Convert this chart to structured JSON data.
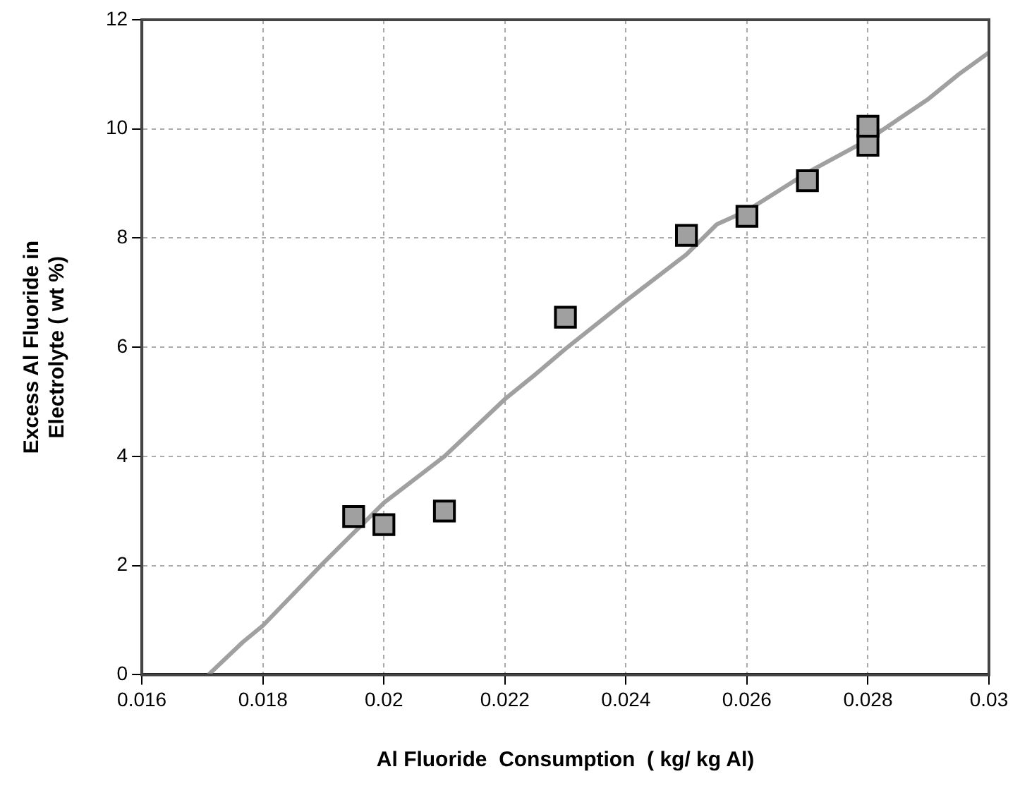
{
  "chart_data": {
    "type": "scatter",
    "xlabel": "Al Fluoride  Consumption  ( kg/ kg Al)",
    "ylabel": "Excess Al Fluoride in Electrolyte ( wt %)",
    "xlim": [
      0.016,
      0.03
    ],
    "xticks": [
      0.016,
      0.018,
      0.02,
      0.022,
      0.024,
      0.026,
      0.028,
      0.03
    ],
    "ylim": [
      0,
      12
    ],
    "yticks": [
      0,
      2,
      4,
      6,
      8,
      10,
      12
    ],
    "grid": true,
    "legend": false,
    "marker": "square",
    "series": [
      {
        "color": "#a0a0a0",
        "x": [
          0.0195,
          0.02,
          0.021,
          0.023,
          0.025,
          0.026,
          0.027,
          0.028,
          0.028
        ],
        "values": [
          2.9,
          2.75,
          3.0,
          6.55,
          8.05,
          8.4,
          9.05,
          9.7,
          10.05
        ]
      },
      {
        "type": "line",
        "color": "#a0a0a0",
        "marker": "none",
        "line_style": "solid",
        "x": [
          0.0171,
          0.01767,
          0.018,
          0.019,
          0.02,
          0.021,
          0.022,
          0.0225,
          0.023,
          0.024,
          0.025,
          0.0255,
          0.026,
          0.027,
          0.028,
          0.029,
          0.0295,
          0.03
        ],
        "values": [
          0,
          0.6,
          0.9,
          2.05,
          3.15,
          4.0,
          5.05,
          5.5,
          5.97,
          6.85,
          7.7,
          8.25,
          8.5,
          9.2,
          9.8,
          10.55,
          11.0,
          11.4
        ]
      }
    ]
  }
}
